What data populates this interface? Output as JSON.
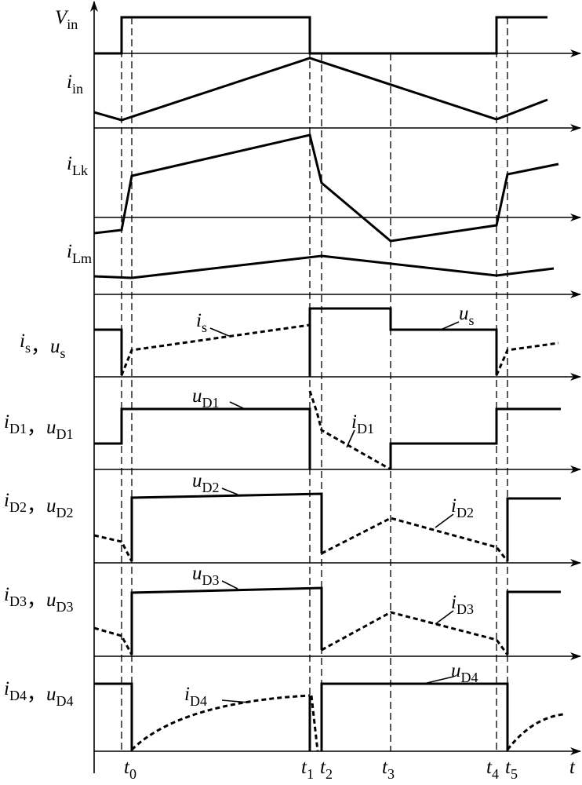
{
  "row_labels": [
    [
      {
        "base": "V",
        "sub": "in"
      }
    ],
    [
      {
        "base": "i",
        "sub": "in"
      }
    ],
    [
      {
        "base": "i",
        "sub": "Lk"
      }
    ],
    [
      {
        "base": "i",
        "sub": "Lm"
      }
    ],
    [
      {
        "base": "i",
        "sub": "s"
      },
      {
        "base": "，"
      },
      {
        "base": "u",
        "sub": "s"
      }
    ],
    [
      {
        "base": "i",
        "sub": "D1"
      },
      {
        "base": "，"
      },
      {
        "base": "u",
        "sub": "D1"
      }
    ],
    [
      {
        "base": "i",
        "sub": "D2"
      },
      {
        "base": "，"
      },
      {
        "base": "u",
        "sub": "D2"
      }
    ],
    [
      {
        "base": "i",
        "sub": "D3"
      },
      {
        "base": "，"
      },
      {
        "base": "u",
        "sub": "D3"
      }
    ],
    [
      {
        "base": "i",
        "sub": "D4"
      },
      {
        "base": "，"
      },
      {
        "base": "u",
        "sub": "D4"
      }
    ]
  ],
  "annotations": [
    {
      "base": "i",
      "sub": "s"
    },
    {
      "base": "u",
      "sub": "s"
    },
    {
      "base": "u",
      "sub": "D1"
    },
    {
      "base": "i",
      "sub": "D1"
    },
    {
      "base": "u",
      "sub": "D2"
    },
    {
      "base": "i",
      "sub": "D2"
    },
    {
      "base": "u",
      "sub": "D3"
    },
    {
      "base": "i",
      "sub": "D3"
    },
    {
      "base": "i",
      "sub": "D4"
    },
    {
      "base": "u",
      "sub": "D4"
    }
  ],
  "time_labels": [
    {
      "base": "t",
      "sub": "0"
    },
    {
      "base": "t",
      "sub": "1"
    },
    {
      "base": "t",
      "sub": "2"
    },
    {
      "base": "t",
      "sub": "3"
    },
    {
      "base": "t",
      "sub": "4"
    },
    {
      "base": "t",
      "sub": "5"
    },
    {
      "base": "t"
    }
  ]
}
